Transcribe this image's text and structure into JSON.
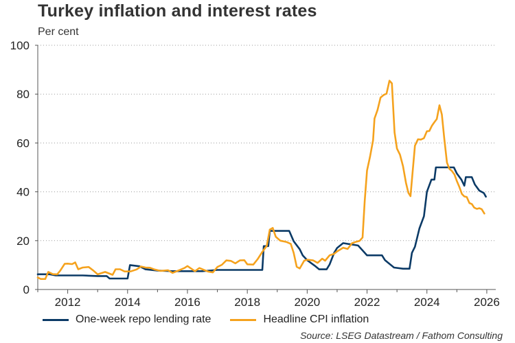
{
  "title": "Turkey inflation and interest rates",
  "unit_label": "Per cent",
  "source": "Source: LSEG Datastream / Fathom Consulting",
  "chart_data": {
    "type": "line",
    "title": "Turkey inflation and interest rates",
    "ylabel": "Per cent",
    "xlabel": "",
    "xlim": [
      2011.0,
      2026.3
    ],
    "ylim": [
      0,
      100
    ],
    "x_ticks": [
      2012,
      2014,
      2016,
      2018,
      2020,
      2022,
      2024,
      2026
    ],
    "y_ticks": [
      0,
      20,
      40,
      60,
      80,
      100
    ],
    "grid": "horizontal dotted",
    "legend": "bottom",
    "series": [
      {
        "name": "One-week repo lending rate",
        "color": "#0b3a66",
        "points": [
          [
            2011.0,
            6.25
          ],
          [
            2011.4,
            6.25
          ],
          [
            2011.6,
            5.75
          ],
          [
            2012.0,
            5.75
          ],
          [
            2012.5,
            5.75
          ],
          [
            2013.0,
            5.5
          ],
          [
            2013.3,
            5.5
          ],
          [
            2013.4,
            4.5
          ],
          [
            2014.0,
            4.5
          ],
          [
            2014.08,
            10.0
          ],
          [
            2014.4,
            9.5
          ],
          [
            2014.6,
            8.25
          ],
          [
            2015.0,
            7.75
          ],
          [
            2015.5,
            7.5
          ],
          [
            2016.0,
            7.5
          ],
          [
            2016.5,
            7.5
          ],
          [
            2017.0,
            8.0
          ],
          [
            2017.5,
            8.0
          ],
          [
            2018.0,
            8.0
          ],
          [
            2018.5,
            8.0
          ],
          [
            2018.55,
            17.75
          ],
          [
            2018.7,
            17.75
          ],
          [
            2018.75,
            24.0
          ],
          [
            2019.4,
            24.0
          ],
          [
            2019.55,
            19.75
          ],
          [
            2019.75,
            16.5
          ],
          [
            2019.85,
            14.0
          ],
          [
            2020.0,
            12.0
          ],
          [
            2020.25,
            9.75
          ],
          [
            2020.4,
            8.25
          ],
          [
            2020.65,
            8.25
          ],
          [
            2020.75,
            10.25
          ],
          [
            2020.9,
            15.0
          ],
          [
            2021.0,
            17.0
          ],
          [
            2021.2,
            19.0
          ],
          [
            2021.7,
            18.0
          ],
          [
            2021.85,
            16.0
          ],
          [
            2022.0,
            14.0
          ],
          [
            2022.5,
            14.0
          ],
          [
            2022.6,
            12.0
          ],
          [
            2022.75,
            10.5
          ],
          [
            2022.9,
            9.0
          ],
          [
            2023.2,
            8.5
          ],
          [
            2023.42,
            8.5
          ],
          [
            2023.5,
            15.0
          ],
          [
            2023.6,
            17.5
          ],
          [
            2023.75,
            25.0
          ],
          [
            2023.9,
            30.0
          ],
          [
            2024.0,
            40.0
          ],
          [
            2024.15,
            45.0
          ],
          [
            2024.25,
            45.0
          ],
          [
            2024.3,
            50.0
          ],
          [
            2024.5,
            50.0
          ],
          [
            2024.9,
            50.0
          ],
          [
            2025.0,
            47.5
          ],
          [
            2025.15,
            45.0
          ],
          [
            2025.25,
            42.5
          ],
          [
            2025.3,
            46.0
          ],
          [
            2025.5,
            46.0
          ],
          [
            2025.6,
            43.0
          ],
          [
            2025.75,
            40.5
          ],
          [
            2025.9,
            39.5
          ],
          [
            2025.97,
            38.0
          ]
        ]
      },
      {
        "name": "Headline CPI inflation",
        "color": "#f5a21d",
        "points": [
          [
            2011.0,
            4.9
          ],
          [
            2011.1,
            4.3
          ],
          [
            2011.25,
            4.3
          ],
          [
            2011.35,
            7.2
          ],
          [
            2011.5,
            6.3
          ],
          [
            2011.65,
            6.2
          ],
          [
            2011.75,
            7.7
          ],
          [
            2011.9,
            10.5
          ],
          [
            2012.0,
            10.6
          ],
          [
            2012.15,
            10.4
          ],
          [
            2012.25,
            11.1
          ],
          [
            2012.35,
            8.3
          ],
          [
            2012.5,
            9.0
          ],
          [
            2012.7,
            9.2
          ],
          [
            2012.85,
            7.8
          ],
          [
            2013.0,
            6.2
          ],
          [
            2013.25,
            7.2
          ],
          [
            2013.5,
            6.0
          ],
          [
            2013.6,
            8.3
          ],
          [
            2013.75,
            8.3
          ],
          [
            2013.9,
            7.4
          ],
          [
            2014.1,
            7.4
          ],
          [
            2014.3,
            8.2
          ],
          [
            2014.45,
            9.4
          ],
          [
            2014.6,
            9.0
          ],
          [
            2014.75,
            8.9
          ],
          [
            2014.9,
            8.2
          ],
          [
            2015.1,
            7.6
          ],
          [
            2015.35,
            7.9
          ],
          [
            2015.5,
            6.8
          ],
          [
            2015.75,
            8.0
          ],
          [
            2015.9,
            8.8
          ],
          [
            2016.0,
            9.6
          ],
          [
            2016.25,
            7.5
          ],
          [
            2016.4,
            8.8
          ],
          [
            2016.55,
            8.0
          ],
          [
            2016.7,
            7.3
          ],
          [
            2016.85,
            7.0
          ],
          [
            2017.0,
            9.2
          ],
          [
            2017.15,
            10.1
          ],
          [
            2017.3,
            11.9
          ],
          [
            2017.45,
            11.7
          ],
          [
            2017.6,
            10.7
          ],
          [
            2017.75,
            11.9
          ],
          [
            2017.9,
            12.0
          ],
          [
            2018.0,
            10.3
          ],
          [
            2018.2,
            10.2
          ],
          [
            2018.35,
            12.5
          ],
          [
            2018.5,
            15.4
          ],
          [
            2018.65,
            17.9
          ],
          [
            2018.75,
            24.5
          ],
          [
            2018.85,
            25.2
          ],
          [
            2018.95,
            21.6
          ],
          [
            2019.1,
            20.0
          ],
          [
            2019.3,
            19.5
          ],
          [
            2019.45,
            18.7
          ],
          [
            2019.55,
            15.0
          ],
          [
            2019.65,
            9.3
          ],
          [
            2019.75,
            8.6
          ],
          [
            2019.9,
            11.8
          ],
          [
            2020.0,
            12.2
          ],
          [
            2020.2,
            11.9
          ],
          [
            2020.35,
            10.9
          ],
          [
            2020.5,
            12.6
          ],
          [
            2020.6,
            11.8
          ],
          [
            2020.75,
            14.0
          ],
          [
            2020.9,
            14.6
          ],
          [
            2021.0,
            15.6
          ],
          [
            2021.2,
            17.1
          ],
          [
            2021.35,
            16.6
          ],
          [
            2021.5,
            18.95
          ],
          [
            2021.65,
            19.6
          ],
          [
            2021.75,
            19.9
          ],
          [
            2021.85,
            21.3
          ],
          [
            2021.92,
            36.1
          ],
          [
            2022.0,
            48.7
          ],
          [
            2022.1,
            54.4
          ],
          [
            2022.2,
            61.1
          ],
          [
            2022.25,
            70.0
          ],
          [
            2022.35,
            73.5
          ],
          [
            2022.45,
            78.6
          ],
          [
            2022.55,
            79.6
          ],
          [
            2022.65,
            80.2
          ],
          [
            2022.75,
            85.5
          ],
          [
            2022.83,
            84.4
          ],
          [
            2022.92,
            64.3
          ],
          [
            2023.0,
            57.7
          ],
          [
            2023.1,
            55.2
          ],
          [
            2023.2,
            50.5
          ],
          [
            2023.3,
            43.7
          ],
          [
            2023.38,
            39.6
          ],
          [
            2023.45,
            38.2
          ],
          [
            2023.52,
            47.8
          ],
          [
            2023.6,
            58.9
          ],
          [
            2023.7,
            61.5
          ],
          [
            2023.8,
            61.4
          ],
          [
            2023.9,
            61.98
          ],
          [
            2024.0,
            64.8
          ],
          [
            2024.08,
            64.9
          ],
          [
            2024.17,
            67.1
          ],
          [
            2024.25,
            68.5
          ],
          [
            2024.33,
            69.8
          ],
          [
            2024.42,
            75.45
          ],
          [
            2024.5,
            71.6
          ],
          [
            2024.58,
            61.8
          ],
          [
            2024.67,
            52.0
          ],
          [
            2024.75,
            49.4
          ],
          [
            2024.83,
            48.6
          ],
          [
            2024.92,
            47.1
          ],
          [
            2025.0,
            44.4
          ],
          [
            2025.08,
            42.1
          ],
          [
            2025.17,
            39.1
          ],
          [
            2025.25,
            38.1
          ],
          [
            2025.33,
            37.9
          ],
          [
            2025.42,
            35.4
          ],
          [
            2025.5,
            35.0
          ],
          [
            2025.58,
            33.5
          ],
          [
            2025.67,
            33.0
          ],
          [
            2025.75,
            33.3
          ],
          [
            2025.83,
            32.9
          ],
          [
            2025.92,
            31.1
          ]
        ]
      }
    ]
  },
  "colors": {
    "repo": "#0b3a66",
    "cpi": "#f5a21d",
    "grid": "#9a9a9a",
    "axis": "#555555"
  }
}
